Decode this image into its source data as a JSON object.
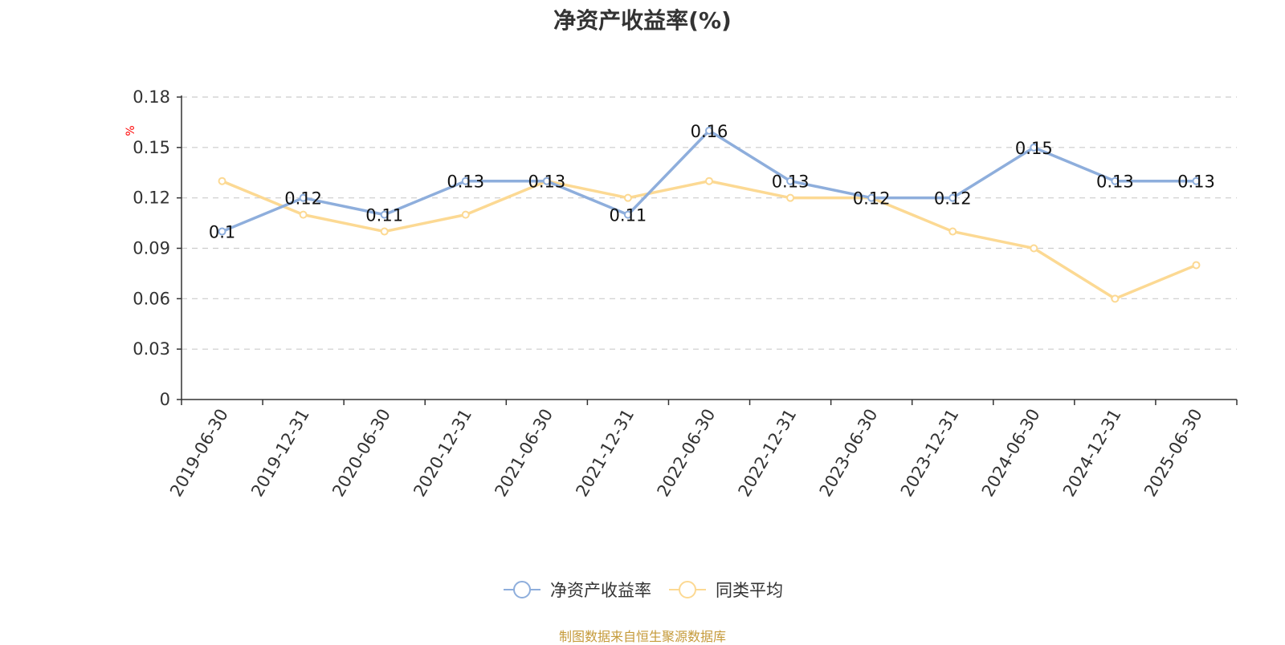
{
  "title": "净资产收益率(%)",
  "source": "制图数据来自恒生聚源数据库",
  "colors": {
    "series_roe": "#8eaedc",
    "series_avg": "#fcd993",
    "axis": "#333333",
    "grid": "#cccccc",
    "unit": "#ff0000",
    "text": "#333333",
    "source": "#c59a3a"
  },
  "chart_data": {
    "type": "line",
    "title": "净资产收益率(%)",
    "ylabel": "%",
    "ylim": [
      0,
      0.18
    ],
    "yticks": [
      "0",
      "0.03",
      "0.06",
      "0.09",
      "0.12",
      "0.15",
      "0.18"
    ],
    "ytick_values": [
      0,
      0.03,
      0.06,
      0.09,
      0.12,
      0.15,
      0.18
    ],
    "grid": true,
    "legend_position": "bottom",
    "categories": [
      "2019-06-30",
      "2019-12-31",
      "2020-06-30",
      "2020-12-31",
      "2021-06-30",
      "2021-12-31",
      "2022-06-30",
      "2022-12-31",
      "2023-06-30",
      "2023-12-31",
      "2024-06-30",
      "2024-12-31",
      "2025-06-30"
    ],
    "series": [
      {
        "name": "净资产收益率",
        "values": [
          0.1,
          0.12,
          0.11,
          0.13,
          0.13,
          0.11,
          0.16,
          0.13,
          0.12,
          0.12,
          0.15,
          0.13,
          0.13
        ],
        "labels": [
          "0.1",
          "0.12",
          "0.11",
          "0.13",
          "0.13",
          "0.11",
          "0.16",
          "0.13",
          "0.12",
          "0.12",
          "0.15",
          "0.13",
          "0.13"
        ]
      },
      {
        "name": "同类平均",
        "values": [
          0.13,
          0.11,
          0.1,
          0.11,
          0.13,
          0.12,
          0.13,
          0.12,
          0.12,
          0.1,
          0.09,
          0.06,
          0.08
        ]
      }
    ]
  }
}
